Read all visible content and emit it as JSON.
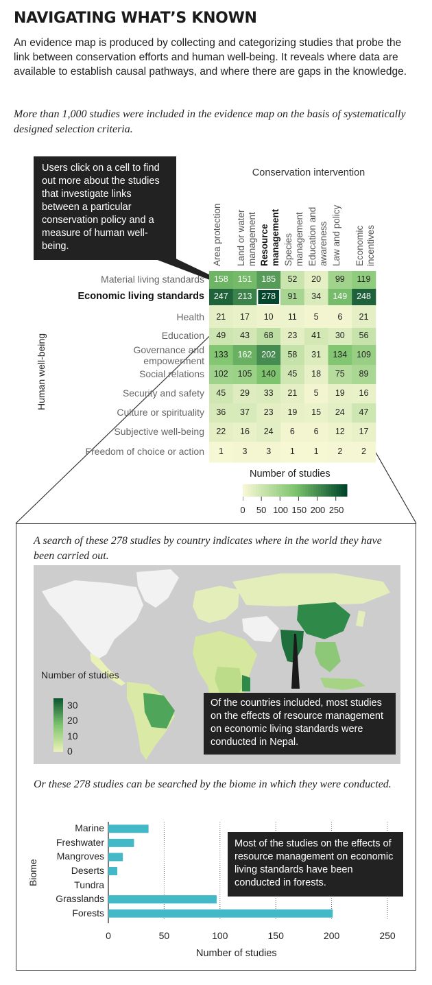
{
  "title": "NAVIGATING WHAT’S KNOWN",
  "intro": "An evidence map is produced by collecting and categorizing studies that probe the link between conservation efforts and human well-being. It reveals where data are available to establish causal pathways, and where there are gaps in the knowledge.",
  "subtitle1": "More than 1,000 studies were included in the evidence map on the basis of systematically designed selection criteria.",
  "callout1": "Users click on a cell to find out more about the studies that investigate links between a particular conservation policy and a measure of human well-being.",
  "subtitle2": "A search of these 278 studies by country indicates where in the world they have been carried out.",
  "callout2": "Of the countries included, most studies on the effects of resource management on economic living standards were conducted in Nepal.",
  "subtitle3": "Or these 278 studies can be searched by the biome in which they were conducted.",
  "callout3": "Most of the studies on the effects of resource management on economic living standards have been conducted in forests.",
  "chart_data": [
    {
      "type": "heatmap",
      "title": "Conservation intervention",
      "ylabel": "Human well-being",
      "columns": [
        "Area protection",
        "Land or water management",
        "Resource management",
        "Species management",
        "Education and awareness",
        "Law and policy",
        "Economic incentives"
      ],
      "rows": [
        "Material living standards",
        "Economic living standards",
        "Health",
        "Education",
        "Governance and empowerment",
        "Social relations",
        "Security and safety",
        "Culture or spirituality",
        "Subjective well-being",
        "Freedom of choice or action"
      ],
      "values": [
        [
          158,
          151,
          185,
          52,
          20,
          99,
          119
        ],
        [
          247,
          213,
          278,
          91,
          34,
          149,
          248
        ],
        [
          21,
          17,
          10,
          11,
          5,
          6,
          21
        ],
        [
          49,
          43,
          68,
          23,
          41,
          30,
          56
        ],
        [
          133,
          162,
          202,
          58,
          31,
          134,
          109
        ],
        [
          102,
          105,
          140,
          45,
          18,
          75,
          89
        ],
        [
          45,
          29,
          33,
          21,
          5,
          19,
          16
        ],
        [
          36,
          37,
          23,
          19,
          15,
          24,
          47
        ],
        [
          22,
          16,
          24,
          6,
          6,
          12,
          17
        ],
        [
          1,
          3,
          3,
          1,
          1,
          2,
          2
        ]
      ],
      "highlight": {
        "row": "Economic living standards",
        "column": "Resource management"
      },
      "legend": {
        "title": "Number of studies",
        "ticks": [
          0,
          50,
          100,
          150,
          200,
          250
        ],
        "range": [
          0,
          280
        ]
      },
      "colors": {
        "low": "#f7f7d4",
        "high": "#00452a"
      }
    },
    {
      "type": "map",
      "legend": {
        "title": "Number of studies",
        "ticks": [
          30,
          20,
          10,
          0
        ],
        "range": [
          0,
          35
        ]
      },
      "annotated_country": "Nepal",
      "colors": {
        "ocean": "#cdcdcd",
        "no_data": "#f2f2f2",
        "low": "#e9f1b6",
        "high": "#0e5a32"
      }
    },
    {
      "type": "bar",
      "orientation": "horizontal",
      "categories": [
        "Marine",
        "Freshwater",
        "Mangroves",
        "Deserts",
        "Tundra",
        "Grasslands",
        "Forests"
      ],
      "values": [
        36,
        23,
        13,
        8,
        0,
        97,
        201
      ],
      "ylabel": "Biome",
      "xlabel": "Number of studies",
      "xlim": [
        0,
        250
      ],
      "xticks": [
        0,
        50,
        100,
        150,
        200,
        250
      ],
      "bar_color": "#43b9c7"
    }
  ]
}
